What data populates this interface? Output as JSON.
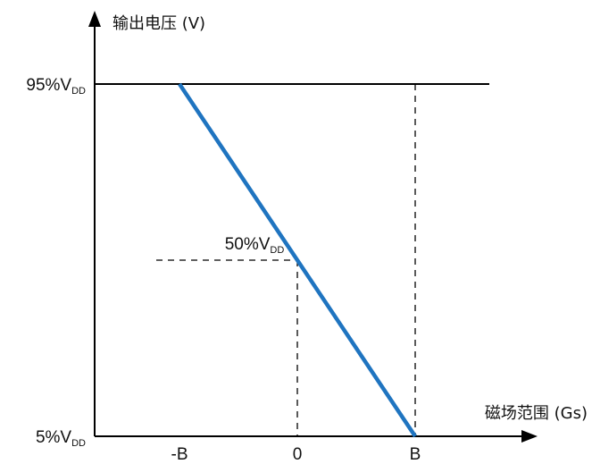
{
  "chart_data": {
    "type": "line",
    "ylabel": "输出电压 (V)",
    "xlabel": "磁场范围 (Gs)",
    "x_ticks": [
      {
        "value": -1,
        "label": "-B"
      },
      {
        "value": 0,
        "label": "0"
      },
      {
        "value": 1,
        "label": "B"
      }
    ],
    "y_ticks": [
      {
        "value": 5,
        "label": "5%",
        "sub": "DD"
      },
      {
        "value": 95,
        "label": "95%",
        "sub": "DD"
      }
    ],
    "xlim": [
      -1.6,
      2.1
    ],
    "ylim": [
      5,
      105
    ],
    "series": [
      {
        "x": [
          -1,
          0,
          1
        ],
        "y": [
          95,
          50,
          5
        ],
        "color": "#1f74c0"
      }
    ],
    "reference_lines": [
      {
        "type": "h",
        "y": 95,
        "style": "solid"
      },
      {
        "type": "v",
        "x": 1,
        "style": "dashed"
      },
      {
        "type": "v",
        "x": 0,
        "style": "dashed"
      },
      {
        "type": "h",
        "y": 50,
        "style": "dashed"
      }
    ],
    "annotations": [
      {
        "x": 0,
        "y": 50,
        "text": "50%",
        "sub": "DD"
      }
    ]
  }
}
